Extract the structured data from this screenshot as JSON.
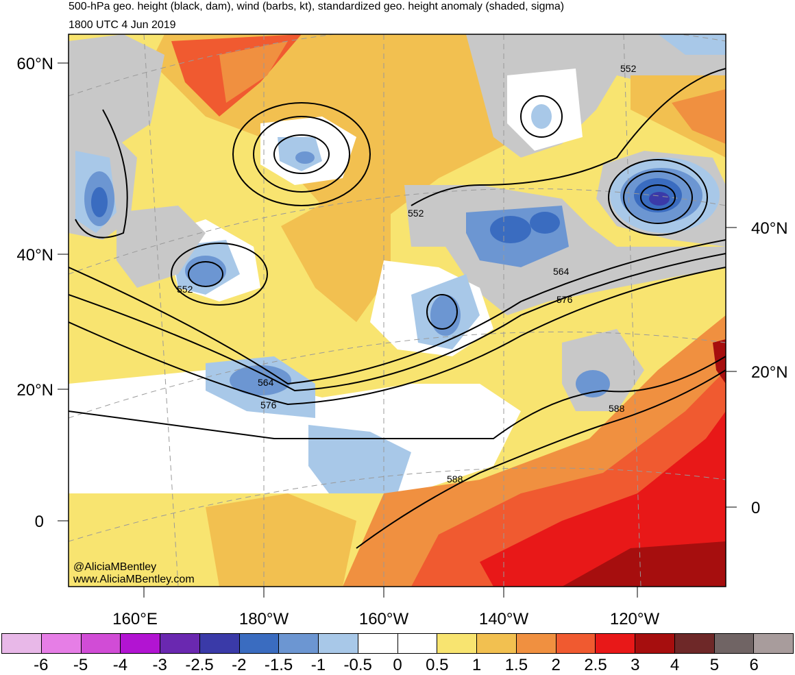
{
  "header": {
    "title": "500-hPa geo. height (black, dam), wind (barbs, kt), standardized geo. height anomaly (shaded, sigma)",
    "valid_time": "1800 UTC 4 Jun 2019"
  },
  "map": {
    "lat_labels_left": [
      "60°N",
      "40°N",
      "20°N",
      "0"
    ],
    "lat_labels_right": [
      "40°N",
      "20°N",
      "0"
    ],
    "lon_labels": [
      "160°E",
      "180°W",
      "160°W",
      "140°W",
      "120°W"
    ],
    "contour_labels": [
      "552",
      "552",
      "552",
      "564",
      "576",
      "564",
      "576",
      "588",
      "588"
    ],
    "credit_handle": "@AliciaMBentley",
    "credit_site": "www.AliciaMBentley.com"
  },
  "colorbar": {
    "colors": [
      "#e8b8e8",
      "#e67ee6",
      "#d14cd6",
      "#b214d2",
      "#6a28b0",
      "#3a3aa8",
      "#3a6cc0",
      "#6c96d2",
      "#a8c8e8",
      "#ffffff",
      "#ffffff",
      "#f8e470",
      "#f2c050",
      "#f09040",
      "#f05a30",
      "#e81818",
      "#a60e0e",
      "#6e2828",
      "#706464",
      "#a89c9c"
    ],
    "labels": [
      "-6",
      "-5",
      "-4",
      "-3",
      "-2.5",
      "-2",
      "-1.5",
      "-1",
      "-0.5",
      "0",
      "0.5",
      "1",
      "1.5",
      "2",
      "2.5",
      "3",
      "4",
      "5",
      "6"
    ]
  }
}
